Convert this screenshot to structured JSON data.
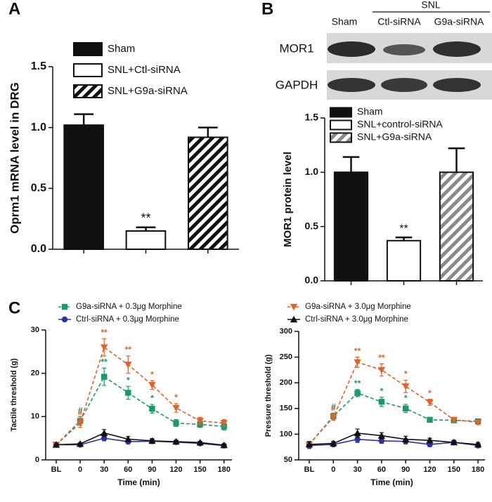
{
  "chart_data": [
    {
      "type": "bar",
      "panel_label": "A",
      "ylabel": "Oprm1 mRNA level in DRG",
      "categories": [
        "Sham",
        "SNL+Ctl-siRNA",
        "SNL+G9a-siRNA"
      ],
      "values": [
        1.02,
        0.15,
        0.92
      ],
      "errors": [
        0.09,
        0.03,
        0.08
      ],
      "annotations": [
        null,
        "**",
        null
      ],
      "colors": [
        "#111111",
        "#ffffff",
        "#ffffff"
      ],
      "hatch": [
        null,
        null,
        "#111111"
      ],
      "ylim": [
        0,
        1.5
      ],
      "yticks": [
        {
          "value": 0,
          "label": "0.0"
        },
        0.5,
        {
          "value": 1,
          "label": "1.0"
        },
        1.5
      ]
    },
    {
      "type": "bar",
      "panel_label": "B",
      "ylabel": "MOR1 protein level",
      "blot": {
        "group": "SNL",
        "lanes": [
          "Sham",
          "Ctl-siRNA",
          "G9a-siRNA"
        ],
        "rows": [
          "MOR1",
          "GAPDH"
        ]
      },
      "categories": [
        "Sham",
        "SNL+control-siRNA",
        "SNL+G9a-siRNA"
      ],
      "values": [
        1.0,
        0.37,
        1.0
      ],
      "errors": [
        0.14,
        0.03,
        0.22
      ],
      "annotations": [
        null,
        "**",
        null
      ],
      "colors": [
        "#111111",
        "#ffffff",
        "#ffffff"
      ],
      "hatch": [
        null,
        null,
        "#8a8a8a"
      ],
      "ylim": [
        0,
        1.5
      ],
      "yticks": [
        {
          "value": 0,
          "label": "0.0"
        },
        0.5,
        {
          "value": 1,
          "label": "1.0"
        },
        1.5
      ]
    },
    {
      "type": "line",
      "panel_label": "C",
      "ylabel": "Tactile threshold (g)",
      "xlabel": "Time (min)",
      "categories": [
        "BL",
        "0",
        "30",
        "60",
        "90",
        "120",
        "150",
        "180"
      ],
      "series": [
        {
          "name": "G9a-siRNA + 0.3μg Morphine",
          "color": "#1a9a6a",
          "marker": "square",
          "dashed": true,
          "values": [
            3.5,
            9,
            19.2,
            15.5,
            11.8,
            8.5,
            8.2,
            7.7
          ],
          "errors": [
            0.3,
            1,
            2,
            1.5,
            1,
            0.8,
            0.7,
            0.8
          ],
          "significance": [
            null,
            "#",
            "**",
            "*",
            "*",
            null,
            null,
            null
          ]
        },
        {
          "name": "Ctrl-siRNA + 0.3μg Morphine",
          "color": "#2e31a8",
          "marker": "circle",
          "dashed": false,
          "values": [
            3.5,
            3.5,
            5,
            4.2,
            4.3,
            4.1,
            3.8,
            3.3
          ],
          "errors": [
            0.3,
            0.3,
            0.6,
            0.5,
            0.5,
            0.3,
            0.3,
            0.2
          ],
          "significance": [
            null,
            null,
            null,
            null,
            null,
            null,
            null,
            null
          ]
        },
        {
          "name": "G9a-siRNA + 3.0μg Morphine",
          "color": "#e0622c",
          "marker": "triangle-down",
          "dashed": true,
          "values": [
            3.5,
            8.5,
            26,
            22,
            17.3,
            12,
            9,
            8.5
          ],
          "errors": [
            0.3,
            1,
            2,
            2,
            1,
            1,
            0.8,
            0.8
          ],
          "significance": [
            null,
            "#",
            "**",
            "**",
            "*",
            "*",
            null,
            null
          ]
        },
        {
          "name": "Ctrl-siRNA + 3.0μg Morphine",
          "color": "#111111",
          "marker": "triangle-up",
          "dashed": false,
          "values": [
            3.5,
            3.7,
            6.2,
            4.8,
            4.4,
            4.2,
            4.0,
            3.4
          ],
          "errors": [
            0.3,
            0.3,
            0.8,
            0.6,
            0.5,
            0.3,
            0.3,
            0.2
          ],
          "significance": [
            null,
            null,
            null,
            null,
            null,
            null,
            null,
            null
          ]
        }
      ],
      "ylim": [
        0,
        30
      ],
      "yticks": [
        0,
        10,
        20,
        30
      ]
    },
    {
      "type": "line",
      "ylabel": "Pressure threshold (g)",
      "xlabel": "Time (min)",
      "categories": [
        "BL",
        "0",
        "30",
        "60",
        "90",
        "120",
        "150",
        "180"
      ],
      "series": [
        {
          "color": "#1a9a6a",
          "marker": "square",
          "dashed": true,
          "values": [
            80,
            135,
            180,
            163,
            150,
            128,
            127,
            125
          ],
          "errors": [
            6,
            6,
            7,
            9,
            8,
            4,
            3,
            4
          ],
          "significance": [
            null,
            "#",
            "**",
            "*",
            "*",
            null,
            null,
            null
          ]
        },
        {
          "color": "#2e31a8",
          "marker": "circle",
          "dashed": false,
          "values": [
            78,
            80,
            90,
            87,
            86,
            80,
            84,
            78
          ],
          "errors": [
            6,
            4,
            6,
            5,
            5,
            4,
            4,
            4
          ],
          "significance": [
            null,
            null,
            null,
            null,
            null,
            null,
            null,
            null
          ]
        },
        {
          "color": "#e0622c",
          "marker": "triangle-down",
          "dashed": true,
          "values": [
            80,
            133,
            240,
            225,
            193,
            162,
            128,
            123
          ],
          "errors": [
            5,
            6,
            10,
            12,
            12,
            6,
            4,
            4
          ],
          "significance": [
            null,
            "#",
            "**",
            "**",
            "*",
            "*",
            null,
            null
          ]
        },
        {
          "color": "#111111",
          "marker": "triangle-up",
          "dashed": false,
          "values": [
            80,
            82,
            102,
            97,
            90,
            88,
            84,
            80
          ],
          "errors": [
            5,
            4,
            8,
            6,
            6,
            4,
            4,
            4
          ],
          "significance": [
            null,
            null,
            null,
            null,
            null,
            null,
            null,
            null
          ]
        }
      ],
      "ylim": [
        50,
        300
      ],
      "yticks": [
        50,
        100,
        150,
        200,
        250,
        300
      ]
    }
  ]
}
